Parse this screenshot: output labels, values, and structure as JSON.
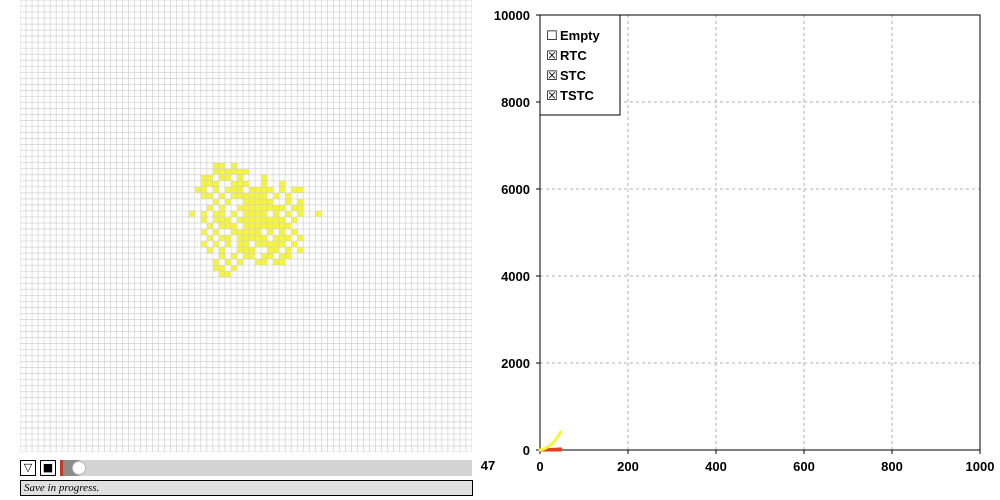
{
  "colors": {
    "grid_line": "#d0d0d0",
    "cell_active": "#f5f53a",
    "chart_grid": "#b0b0b0",
    "series_rtc": "#f5f53a",
    "series_stc": "#e63c1e",
    "series_tstc": "#e63c1e"
  },
  "controls": {
    "dropdown_icon": "triangle-down-icon",
    "dropdown_glyph": "▽",
    "stop_icon": "stop-square-icon",
    "stop_glyph": "■",
    "slider_value": "47",
    "slider_fraction": 0.047
  },
  "status": {
    "text": "Save in progress."
  },
  "grid": {
    "cols": 75,
    "rows": 75,
    "active_cells": [
      [
        32,
        27
      ],
      [
        33,
        27
      ],
      [
        35,
        27
      ],
      [
        32,
        28
      ],
      [
        33,
        28
      ],
      [
        34,
        28
      ],
      [
        35,
        28
      ],
      [
        36,
        28
      ],
      [
        37,
        28
      ],
      [
        30,
        29
      ],
      [
        31,
        29
      ],
      [
        33,
        29
      ],
      [
        34,
        29
      ],
      [
        36,
        29
      ],
      [
        40,
        29
      ],
      [
        30,
        30
      ],
      [
        31,
        30
      ],
      [
        32,
        30
      ],
      [
        35,
        30
      ],
      [
        36,
        30
      ],
      [
        37,
        30
      ],
      [
        40,
        30
      ],
      [
        43,
        30
      ],
      [
        29,
        31
      ],
      [
        30,
        31
      ],
      [
        32,
        31
      ],
      [
        34,
        31
      ],
      [
        35,
        31
      ],
      [
        36,
        31
      ],
      [
        38,
        31
      ],
      [
        39,
        31
      ],
      [
        40,
        31
      ],
      [
        41,
        31
      ],
      [
        43,
        31
      ],
      [
        45,
        31
      ],
      [
        46,
        31
      ],
      [
        30,
        32
      ],
      [
        31,
        32
      ],
      [
        33,
        32
      ],
      [
        35,
        32
      ],
      [
        36,
        32
      ],
      [
        37,
        32
      ],
      [
        38,
        32
      ],
      [
        39,
        32
      ],
      [
        40,
        32
      ],
      [
        42,
        32
      ],
      [
        44,
        32
      ],
      [
        32,
        33
      ],
      [
        34,
        33
      ],
      [
        37,
        33
      ],
      [
        38,
        33
      ],
      [
        39,
        33
      ],
      [
        40,
        33
      ],
      [
        41,
        33
      ],
      [
        44,
        33
      ],
      [
        46,
        33
      ],
      [
        31,
        34
      ],
      [
        33,
        34
      ],
      [
        36,
        34
      ],
      [
        37,
        34
      ],
      [
        38,
        34
      ],
      [
        39,
        34
      ],
      [
        40,
        34
      ],
      [
        41,
        34
      ],
      [
        42,
        34
      ],
      [
        43,
        34
      ],
      [
        45,
        34
      ],
      [
        46,
        34
      ],
      [
        28,
        35
      ],
      [
        30,
        35
      ],
      [
        32,
        35
      ],
      [
        33,
        35
      ],
      [
        35,
        35
      ],
      [
        37,
        35
      ],
      [
        38,
        35
      ],
      [
        39,
        35
      ],
      [
        40,
        35
      ],
      [
        42,
        35
      ],
      [
        44,
        35
      ],
      [
        46,
        35
      ],
      [
        49,
        35
      ],
      [
        30,
        36
      ],
      [
        32,
        36
      ],
      [
        33,
        36
      ],
      [
        34,
        36
      ],
      [
        36,
        36
      ],
      [
        37,
        36
      ],
      [
        38,
        36
      ],
      [
        39,
        36
      ],
      [
        40,
        36
      ],
      [
        41,
        36
      ],
      [
        42,
        36
      ],
      [
        43,
        36
      ],
      [
        45,
        36
      ],
      [
        31,
        37
      ],
      [
        33,
        37
      ],
      [
        34,
        37
      ],
      [
        35,
        37
      ],
      [
        37,
        37
      ],
      [
        38,
        37
      ],
      [
        39,
        37
      ],
      [
        40,
        37
      ],
      [
        41,
        37
      ],
      [
        42,
        37
      ],
      [
        43,
        37
      ],
      [
        44,
        37
      ],
      [
        30,
        38
      ],
      [
        32,
        38
      ],
      [
        35,
        38
      ],
      [
        36,
        38
      ],
      [
        37,
        38
      ],
      [
        38,
        38
      ],
      [
        39,
        38
      ],
      [
        41,
        38
      ],
      [
        43,
        38
      ],
      [
        45,
        38
      ],
      [
        31,
        39
      ],
      [
        33,
        39
      ],
      [
        34,
        39
      ],
      [
        36,
        39
      ],
      [
        37,
        39
      ],
      [
        38,
        39
      ],
      [
        39,
        39
      ],
      [
        40,
        39
      ],
      [
        42,
        39
      ],
      [
        43,
        39
      ],
      [
        44,
        39
      ],
      [
        46,
        39
      ],
      [
        30,
        40
      ],
      [
        32,
        40
      ],
      [
        34,
        40
      ],
      [
        36,
        40
      ],
      [
        37,
        40
      ],
      [
        39,
        40
      ],
      [
        40,
        40
      ],
      [
        41,
        40
      ],
      [
        42,
        40
      ],
      [
        43,
        40
      ],
      [
        45,
        40
      ],
      [
        31,
        41
      ],
      [
        33,
        41
      ],
      [
        36,
        41
      ],
      [
        37,
        41
      ],
      [
        38,
        41
      ],
      [
        41,
        41
      ],
      [
        42,
        41
      ],
      [
        44,
        41
      ],
      [
        46,
        41
      ],
      [
        33,
        42
      ],
      [
        35,
        42
      ],
      [
        37,
        42
      ],
      [
        38,
        42
      ],
      [
        40,
        42
      ],
      [
        41,
        42
      ],
      [
        43,
        42
      ],
      [
        44,
        42
      ],
      [
        32,
        43
      ],
      [
        34,
        43
      ],
      [
        36,
        43
      ],
      [
        39,
        43
      ],
      [
        40,
        43
      ],
      [
        42,
        43
      ],
      [
        43,
        43
      ],
      [
        32,
        44
      ],
      [
        33,
        44
      ],
      [
        35,
        44
      ],
      [
        33,
        45
      ],
      [
        34,
        45
      ]
    ]
  },
  "chart_data": {
    "type": "line",
    "xlim": [
      0,
      1000
    ],
    "ylim": [
      0,
      10000
    ],
    "x_ticks": [
      "0",
      "200",
      "400",
      "600",
      "800",
      "1000"
    ],
    "y_ticks": [
      "0",
      "2000",
      "4000",
      "6000",
      "8000",
      "10000"
    ],
    "grid": true,
    "legend": {
      "placement": "top-left",
      "items": [
        {
          "label": "Empty",
          "checked": false,
          "box": "☐"
        },
        {
          "label": "RTC",
          "checked": true,
          "box": "☒"
        },
        {
          "label": "STC",
          "checked": true,
          "box": "☒"
        },
        {
          "label": "TSTC",
          "checked": true,
          "box": "☒"
        }
      ]
    },
    "series": [
      {
        "name": "RTC",
        "color": "#f5f53a",
        "x": [
          0,
          10,
          20,
          30,
          40,
          47
        ],
        "y": [
          0,
          30,
          80,
          170,
          300,
          420
        ]
      },
      {
        "name": "STC",
        "color": "#e63c1e",
        "x": [
          0,
          10,
          20,
          30,
          40,
          47
        ],
        "y": [
          0,
          5,
          10,
          15,
          20,
          25
        ]
      },
      {
        "name": "TSTC",
        "color": "#e63c1e",
        "x": [
          0,
          10,
          20,
          30,
          40,
          47
        ],
        "y": [
          0,
          0,
          0,
          0,
          0,
          0
        ]
      }
    ]
  }
}
